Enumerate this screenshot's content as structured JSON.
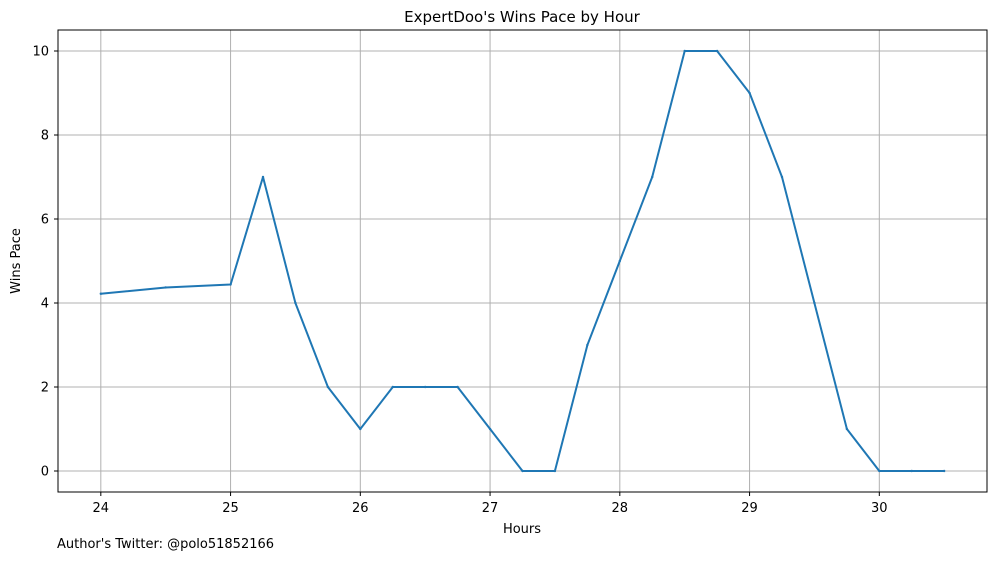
{
  "chart_data": {
    "type": "line",
    "title": "ExpertDoo's Wins Pace by Hour",
    "xlabel": "Hours",
    "ylabel": "Wins Pace",
    "xlim": [
      23.67,
      30.83
    ],
    "ylim": [
      -0.5,
      10.5
    ],
    "x_ticks": [
      24,
      25,
      26,
      27,
      28,
      29,
      30
    ],
    "y_ticks": [
      0,
      2,
      4,
      6,
      8,
      10
    ],
    "grid": true,
    "series": [
      {
        "color": "#1f77b4",
        "x": [
          24,
          24.5,
          25,
          25.25,
          25.5,
          25.75,
          26,
          26.25,
          26.5,
          26.75,
          27,
          27.25,
          27.5,
          27.75,
          28,
          28.25,
          28.5,
          28.75,
          29,
          29.25,
          29.5,
          29.75,
          30,
          30.25,
          30.5
        ],
        "y": [
          4.22,
          4.37,
          4.44,
          7,
          4,
          2,
          1,
          2,
          2,
          2,
          1,
          0,
          0,
          3,
          5,
          7,
          10,
          10,
          9,
          7,
          4,
          1,
          0,
          0,
          0
        ]
      }
    ]
  },
  "footer": {
    "text": "Author's Twitter: @polo51852166"
  }
}
